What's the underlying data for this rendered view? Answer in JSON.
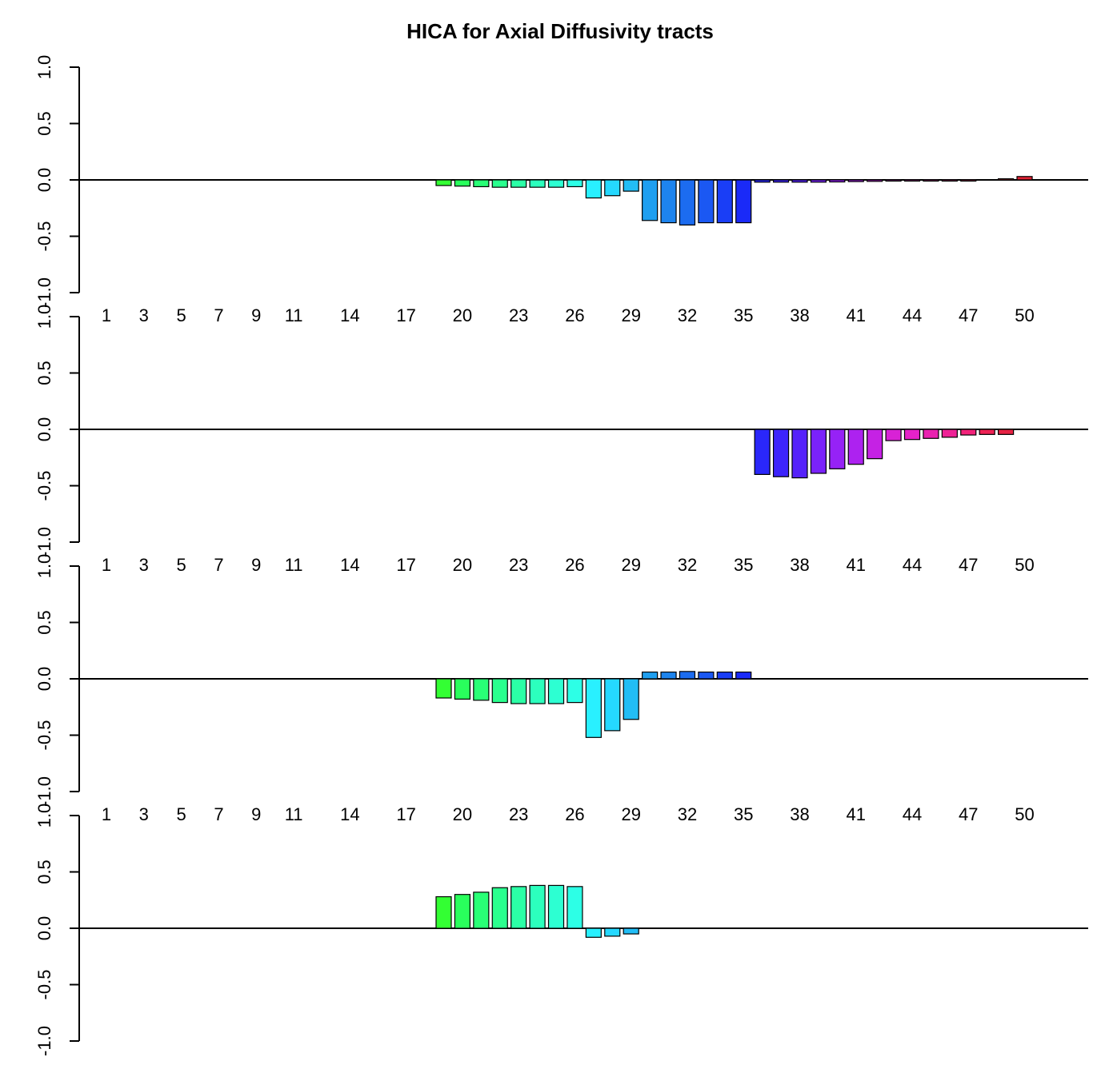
{
  "chart_data": {
    "type": "bar",
    "title": "HICA for  Axial Diffusivity tracts",
    "xlabel": "",
    "ylabel": "",
    "ylim": [
      -1.0,
      1.0
    ],
    "y_ticks": [
      "-1.0",
      "-0.5",
      "0.0",
      "0.5",
      "1.0"
    ],
    "x_tick_labels": [
      "1",
      "3",
      "5",
      "7",
      "9",
      "11",
      "14",
      "17",
      "20",
      "23",
      "26",
      "29",
      "32",
      "35",
      "38",
      "41",
      "44",
      "47",
      "50"
    ],
    "colors": [
      "#1aff1a",
      "#1aff1a",
      "#1aff1a",
      "#1aff1a",
      "#1aff1a",
      "#1aff1a",
      "#1aff1a",
      "#1aff1a",
      "#1aff1a",
      "#1aff1a",
      "#1aff1a",
      "#1aff1a",
      "#1aff1a",
      "#1aff1a",
      "#1aff1a",
      "#1aff1a",
      "#1aff1a",
      "#1aff1a",
      "#33ff33",
      "#29ff5c",
      "#29ff76",
      "#2aff8e",
      "#2bffa6",
      "#2cffbd",
      "#2dffd2",
      "#2dffe6",
      "#29f0ff",
      "#25d8ff",
      "#22bdf5",
      "#1f9ff0",
      "#1d84ee",
      "#1c6cf0",
      "#1b58f3",
      "#1a3ef6",
      "#1a2af8",
      "#2a27fa",
      "#3d24fb",
      "#5522fa",
      "#7a22fa",
      "#9622f6",
      "#ad22f0",
      "#c522e4",
      "#d822d6",
      "#e522c8",
      "#e922b0",
      "#ee2296",
      "#f2227a",
      "#ee2255",
      "#e62244",
      "#de2233"
    ],
    "series": [
      {
        "values": [
          0,
          0,
          0,
          0,
          0,
          0,
          0,
          0,
          0,
          0,
          0,
          0,
          0,
          0,
          0,
          0,
          0,
          0,
          -0.05,
          -0.055,
          -0.06,
          -0.065,
          -0.065,
          -0.065,
          -0.065,
          -0.06,
          -0.16,
          -0.14,
          -0.1,
          -0.36,
          -0.38,
          -0.4,
          -0.38,
          -0.38,
          -0.38,
          -0.02,
          -0.02,
          -0.02,
          -0.02,
          -0.018,
          -0.015,
          -0.013,
          -0.005,
          -0.005,
          -0.005,
          -0.005,
          -0.005,
          0.0,
          0.01,
          0.03
        ]
      },
      {
        "values": [
          0,
          0,
          0,
          0,
          0,
          0,
          0,
          0,
          0,
          0,
          0,
          0,
          0,
          0,
          0,
          0,
          0,
          0,
          0,
          0,
          0,
          0,
          0,
          0,
          0,
          0,
          0,
          0,
          0,
          0,
          0,
          0,
          0,
          0,
          0,
          -0.4,
          -0.42,
          -0.43,
          -0.39,
          -0.35,
          -0.31,
          -0.26,
          -0.1,
          -0.09,
          -0.08,
          -0.07,
          -0.05,
          -0.045,
          -0.045,
          0
        ]
      },
      {
        "values": [
          0,
          0,
          0,
          0,
          0,
          0,
          0,
          0,
          0,
          0,
          0,
          0,
          0,
          0,
          0,
          0,
          0,
          0,
          -0.17,
          -0.18,
          -0.19,
          -0.21,
          -0.22,
          -0.22,
          -0.22,
          -0.21,
          -0.52,
          -0.46,
          -0.36,
          0.06,
          0.06,
          0.065,
          0.06,
          0.06,
          0.06,
          0,
          0,
          0,
          0,
          0,
          0,
          0,
          0,
          0,
          0,
          0,
          0,
          0,
          0,
          0
        ]
      },
      {
        "values": [
          0,
          0,
          0,
          0,
          0,
          0,
          0,
          0,
          0,
          0,
          0,
          0,
          0,
          0,
          0,
          0,
          0,
          0,
          0.28,
          0.3,
          0.32,
          0.36,
          0.37,
          0.38,
          0.38,
          0.37,
          -0.08,
          -0.07,
          -0.05,
          0,
          0,
          0,
          0,
          0,
          0,
          0,
          0,
          0,
          0,
          0,
          0,
          0,
          0,
          0,
          0,
          0,
          0,
          0,
          0,
          0
        ]
      }
    ]
  }
}
